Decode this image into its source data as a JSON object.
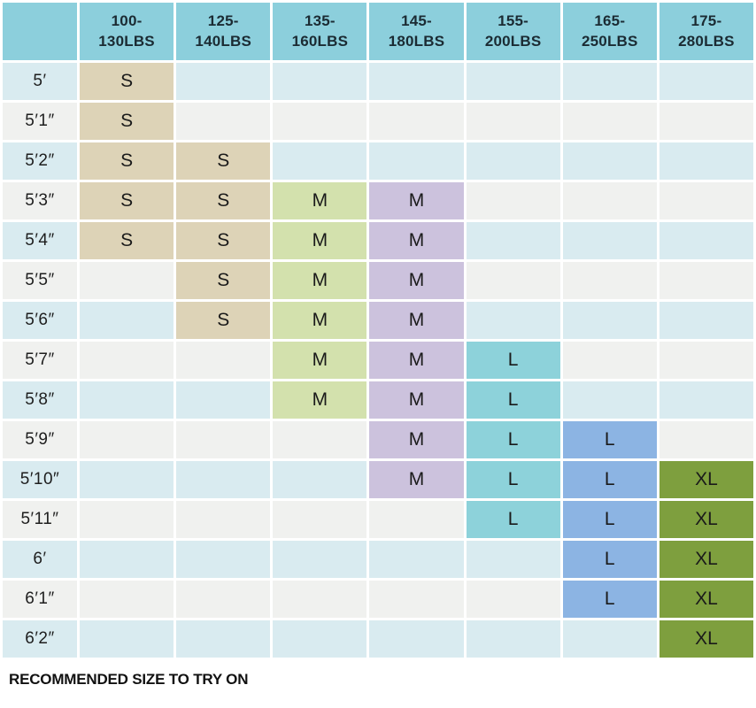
{
  "chart_data": {
    "type": "table",
    "column_headers": [
      "100-\n130LBS",
      "125-\n140LBS",
      "135-\n160LBS",
      "145-\n180LBS",
      "155-\n200LBS",
      "165-\n250LBS",
      "175-\n280LBS"
    ],
    "rows": [
      {
        "label": "5′",
        "cells": [
          "S",
          "",
          "",
          "",
          "",
          "",
          ""
        ]
      },
      {
        "label": "5′1″",
        "cells": [
          "S",
          "",
          "",
          "",
          "",
          "",
          ""
        ]
      },
      {
        "label": "5′2″",
        "cells": [
          "S",
          "S",
          "",
          "",
          "",
          "",
          ""
        ]
      },
      {
        "label": "5′3″",
        "cells": [
          "S",
          "S",
          "M",
          "M",
          "",
          "",
          ""
        ]
      },
      {
        "label": "5′4″",
        "cells": [
          "S",
          "S",
          "M",
          "M",
          "",
          "",
          ""
        ]
      },
      {
        "label": "5′5″",
        "cells": [
          "",
          "S",
          "M",
          "M",
          "",
          "",
          ""
        ]
      },
      {
        "label": "5′6″",
        "cells": [
          "",
          "S",
          "M",
          "M",
          "",
          "",
          ""
        ]
      },
      {
        "label": "5′7″",
        "cells": [
          "",
          "",
          "M",
          "M",
          "L",
          "",
          ""
        ]
      },
      {
        "label": "5′8″",
        "cells": [
          "",
          "",
          "M",
          "M",
          "L",
          "",
          ""
        ]
      },
      {
        "label": "5′9″",
        "cells": [
          "",
          "",
          "",
          "M",
          "L",
          "L",
          ""
        ]
      },
      {
        "label": "5′10″",
        "cells": [
          "",
          "",
          "",
          "M",
          "L",
          "L",
          "XL"
        ]
      },
      {
        "label": "5′11″",
        "cells": [
          "",
          "",
          "",
          "",
          "L",
          "L",
          "XL"
        ]
      },
      {
        "label": "6′",
        "cells": [
          "",
          "",
          "",
          "",
          "",
          "L",
          "XL"
        ]
      },
      {
        "label": "6′1″",
        "cells": [
          "",
          "",
          "",
          "",
          "",
          "L",
          "XL"
        ]
      },
      {
        "label": "6′2″",
        "cells": [
          "",
          "",
          "",
          "",
          "",
          "",
          "XL"
        ]
      }
    ],
    "note": "RECOMMENDED SIZE TO TRY ON"
  },
  "colors": {
    "header_bg": "#8ccfdc",
    "header_text": "#1b2b33",
    "row_blue": "#d9ebf0",
    "row_gray": "#f0f1ef",
    "label_text": "#1e1e1e",
    "cell_text": "#1a1a1a",
    "column_fills": [
      "#ddd3b7",
      "#ddd3b7",
      "#d3e1ad",
      "#ccc2dd",
      "#8dd2da",
      "#8cb4e3",
      "#7e9f3e"
    ]
  }
}
